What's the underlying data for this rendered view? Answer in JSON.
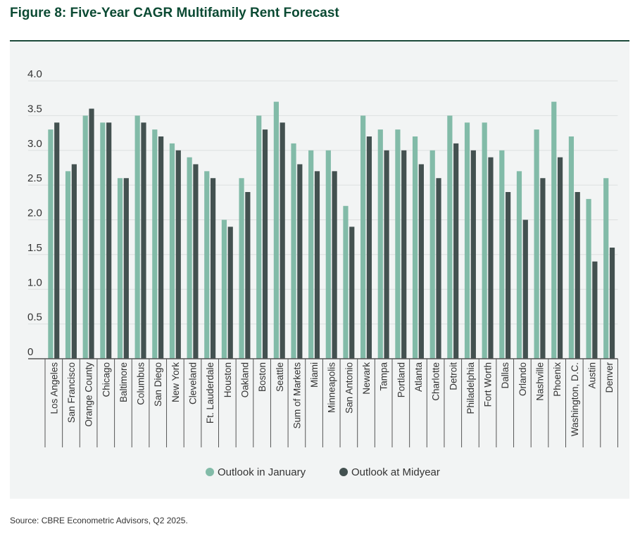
{
  "chart_data": {
    "type": "bar",
    "title": "Figure 8: Five-Year CAGR Multifamily Rent Forecast",
    "xlabel": "",
    "ylabel": "",
    "ylim": [
      0,
      4.0
    ],
    "yticks": [
      "0",
      "0.5",
      "1.0",
      "1.5",
      "2.0",
      "2.5",
      "3.0",
      "3.5",
      "4.0"
    ],
    "grid": true,
    "legend_position": "bottom-center",
    "categories": [
      "Los Angeles",
      "San Francisco",
      "Orange County",
      "Chicago",
      "Baltimore",
      "Columbus",
      "San Diego",
      "New York",
      "Cleveland",
      "Ft. Lauderdale",
      "Houston",
      "Oakland",
      "Boston",
      "Seattle",
      "Sum of Markets",
      "Miami",
      "Minneapolis",
      "San Antonio",
      "Newark",
      "Tampa",
      "Portland",
      "Atlanta",
      "Charlotte",
      "Detroit",
      "Philadelphia",
      "Fort Worth",
      "Dallas",
      "Orlando",
      "Nashville",
      "Phoenix",
      "Washington, D.C.",
      "Austin",
      "Denver"
    ],
    "series": [
      {
        "name": "Outlook in January",
        "color": "#82bba8",
        "values": [
          3.3,
          2.7,
          3.5,
          3.4,
          2.6,
          3.5,
          3.3,
          3.1,
          2.9,
          2.7,
          2.0,
          2.6,
          3.5,
          3.7,
          3.1,
          3.0,
          3.0,
          2.2,
          3.5,
          3.3,
          3.3,
          3.2,
          3.0,
          3.5,
          3.4,
          3.4,
          3.0,
          2.7,
          3.3,
          3.7,
          3.2,
          2.3,
          2.6
        ]
      },
      {
        "name": "Outlook at Midyear",
        "color": "#435150",
        "values": [
          3.4,
          2.8,
          3.6,
          3.4,
          2.6,
          3.4,
          3.2,
          3.0,
          2.8,
          2.6,
          1.9,
          2.4,
          3.3,
          3.4,
          2.8,
          2.7,
          2.7,
          1.9,
          3.2,
          3.0,
          3.0,
          2.8,
          2.6,
          3.1,
          3.0,
          2.9,
          2.4,
          2.0,
          2.6,
          2.9,
          2.4,
          1.4,
          1.6
        ]
      }
    ]
  },
  "source": "Source: CBRE Econometric Advisors, Q2 2025."
}
